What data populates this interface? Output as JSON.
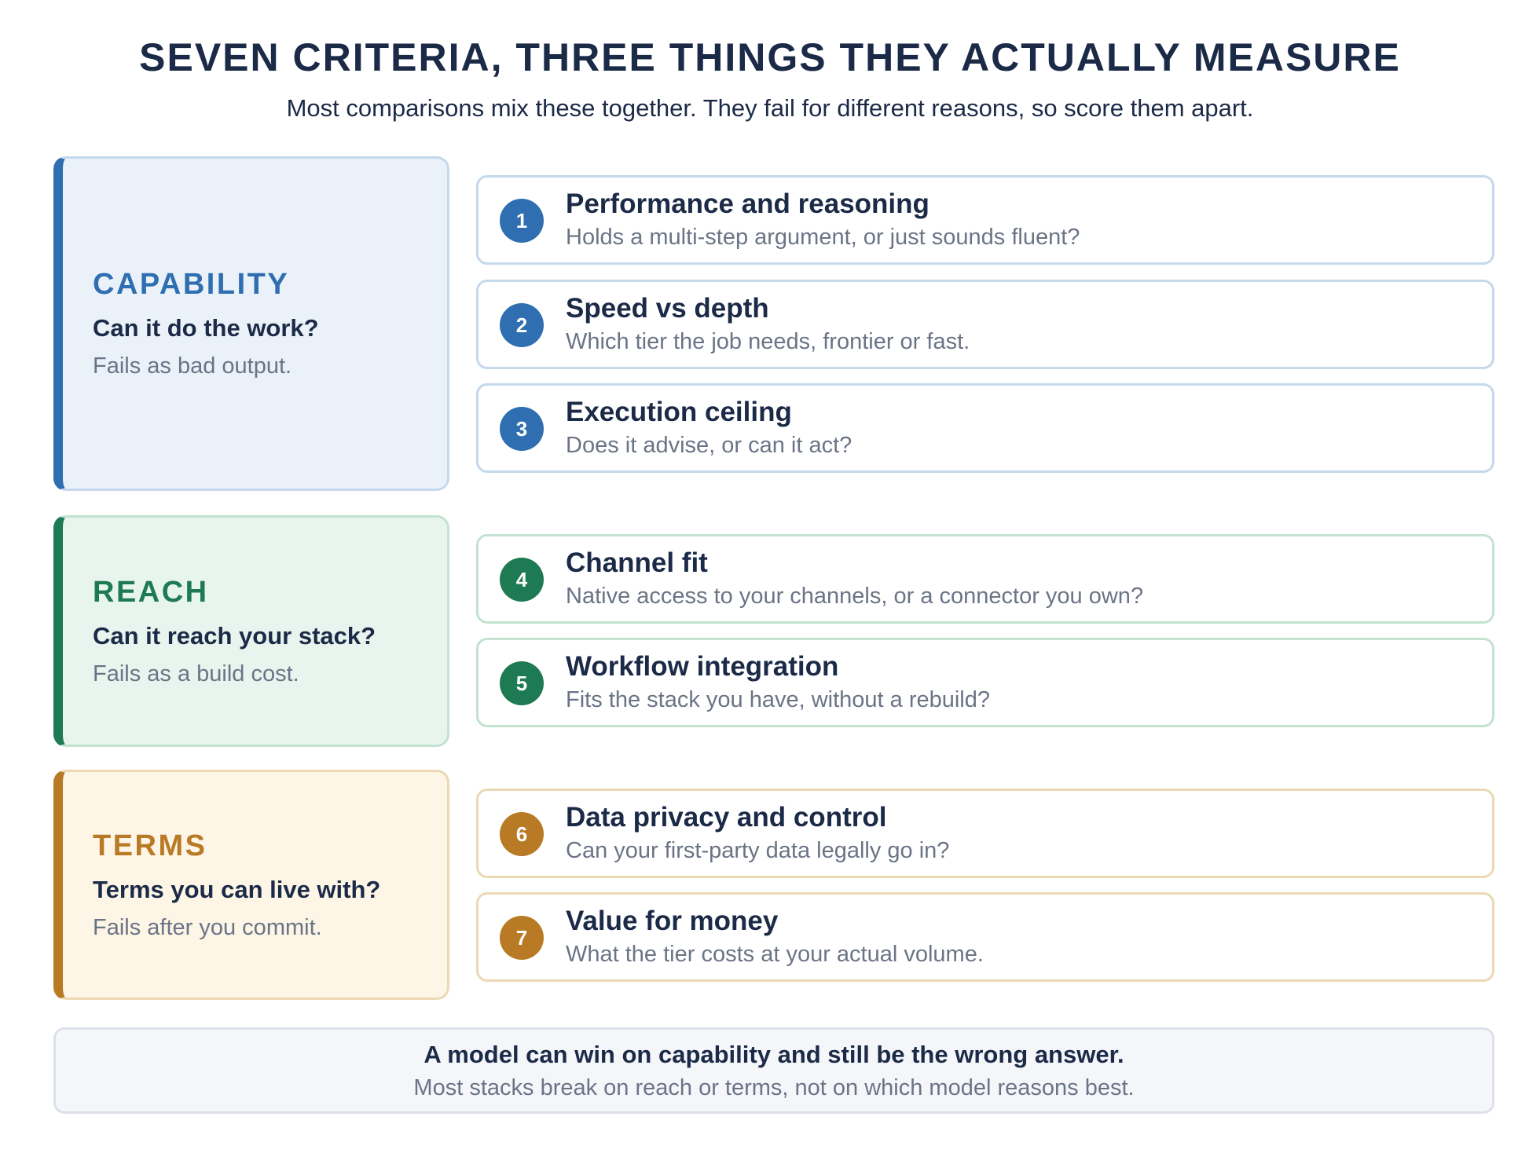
{
  "title": "SEVEN CRITERIA, THREE THINGS THEY ACTUALLY MEASURE",
  "subtitle": "Most comparisons mix these together. They fail for different reasons, so score them apart.",
  "colors": {
    "capability": "#2f6fb1",
    "capability_bg": "#eaf1f9",
    "capability_border": "#c5d8ec",
    "reach": "#1e7a52",
    "reach_bg": "#e8f5ee",
    "reach_border": "#c3e2d1",
    "terms": "#b87a24",
    "terms_bg": "#fdf5e6",
    "terms_border": "#ecd9b3"
  },
  "groups": [
    {
      "name": "CAPABILITY",
      "question": "Can it do the work?",
      "failure": "Fails as bad output.",
      "criteria": [
        {
          "number": "1",
          "title": "Performance and reasoning",
          "description": "Holds a multi-step argument, or just sounds fluent?"
        },
        {
          "number": "2",
          "title": "Speed vs depth",
          "description": "Which tier the job needs, frontier or fast."
        },
        {
          "number": "3",
          "title": "Execution ceiling",
          "description": "Does it advise, or can it act?"
        }
      ]
    },
    {
      "name": "REACH",
      "question": "Can it reach your stack?",
      "failure": "Fails as a build cost.",
      "criteria": [
        {
          "number": "4",
          "title": "Channel fit",
          "description": "Native access to your channels, or a connector you own?"
        },
        {
          "number": "5",
          "title": "Workflow integration",
          "description": "Fits the stack you have, without a rebuild?"
        }
      ]
    },
    {
      "name": "TERMS",
      "question": "Terms you can live with?",
      "failure": "Fails after you commit.",
      "criteria": [
        {
          "number": "6",
          "title": "Data privacy and control",
          "description": "Can your first-party data legally go in?"
        },
        {
          "number": "7",
          "title": "Value for money",
          "description": "What the tier costs at your actual volume."
        }
      ]
    }
  ],
  "footer": {
    "main": "A model can win on capability and still be the wrong answer.",
    "sub": "Most stacks break on reach or terms, not on which model reasons best."
  }
}
